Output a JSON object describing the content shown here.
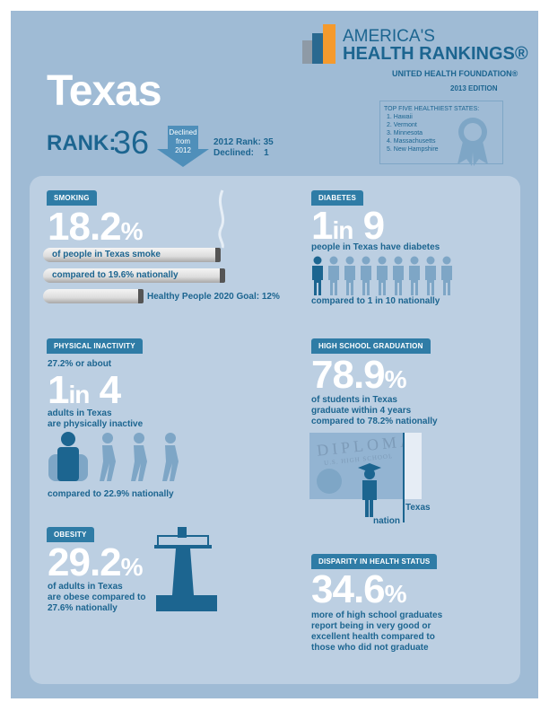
{
  "state": "Texas",
  "rank": {
    "label": "RANK:",
    "value": "36",
    "arrow_text": [
      "Declined",
      "from",
      "2012"
    ],
    "prev_label": "2012 Rank:",
    "prev_value": "35",
    "declined_label": "Declined:",
    "declined_value": "1"
  },
  "logo": {
    "line1": "AMERICA'S",
    "line2": "HEALTH RANKINGS®",
    "sponsor": "UNITED HEALTH FOUNDATION®",
    "edition": "2013 EDITION"
  },
  "top_five": {
    "title": "TOP FIVE HEALTHIEST STATES:",
    "items": [
      "1. Hawaii",
      "2. Vermont",
      "3. Minnesota",
      "4. Massachusetts",
      "5. New Hampshire"
    ]
  },
  "smoking": {
    "label": "SMOKING",
    "value": "18.2",
    "unit": "%",
    "line1": "of people in Texas smoke",
    "line2": "compared to 19.6% nationally",
    "goal": "Healthy People 2020 Goal: 12%"
  },
  "diabetes": {
    "label": "DIABETES",
    "big_a": "1",
    "big_in": "in",
    "big_b": "9",
    "line1": "people in Texas have diabetes",
    "compare": "compared to 1 in 10 nationally",
    "highlighted": 1,
    "total": 9
  },
  "inactivity": {
    "label": "PHYSICAL INACTIVITY",
    "pre": "27.2% or about",
    "big_a": "1",
    "big_in": "in",
    "big_b": "4",
    "line1": "adults in Texas",
    "line2": "are physically inactive",
    "compare": "compared to 22.9% nationally"
  },
  "graduation": {
    "label": "HIGH SCHOOL GRADUATION",
    "value": "78.9",
    "unit": "%",
    "line1": "of students in Texas",
    "line2": "graduate within 4 years",
    "line3": "compared to 78.2% nationally",
    "diploma": "DIPLOMA",
    "diploma_sub": "U.S. HIGH SCHOOL",
    "texas": "Texas",
    "nation": "nation"
  },
  "obesity": {
    "label": "OBESITY",
    "value": "29.2",
    "unit": "%",
    "line1": "of adults in Texas",
    "line2": "are obese compared to",
    "line3": "27.6% nationally"
  },
  "disparity": {
    "label": "DISPARITY IN HEALTH STATUS",
    "value": "34.6",
    "unit": "%",
    "line1": "more of high school graduates",
    "line2": "report being in very good or",
    "line3": "excellent health compared to",
    "line4": "those who did not graduate"
  },
  "colors": {
    "background": "#9fbbd5",
    "panel": "#bccfe2",
    "accent": "#1c6590",
    "tag": "#2f7ca6"
  }
}
